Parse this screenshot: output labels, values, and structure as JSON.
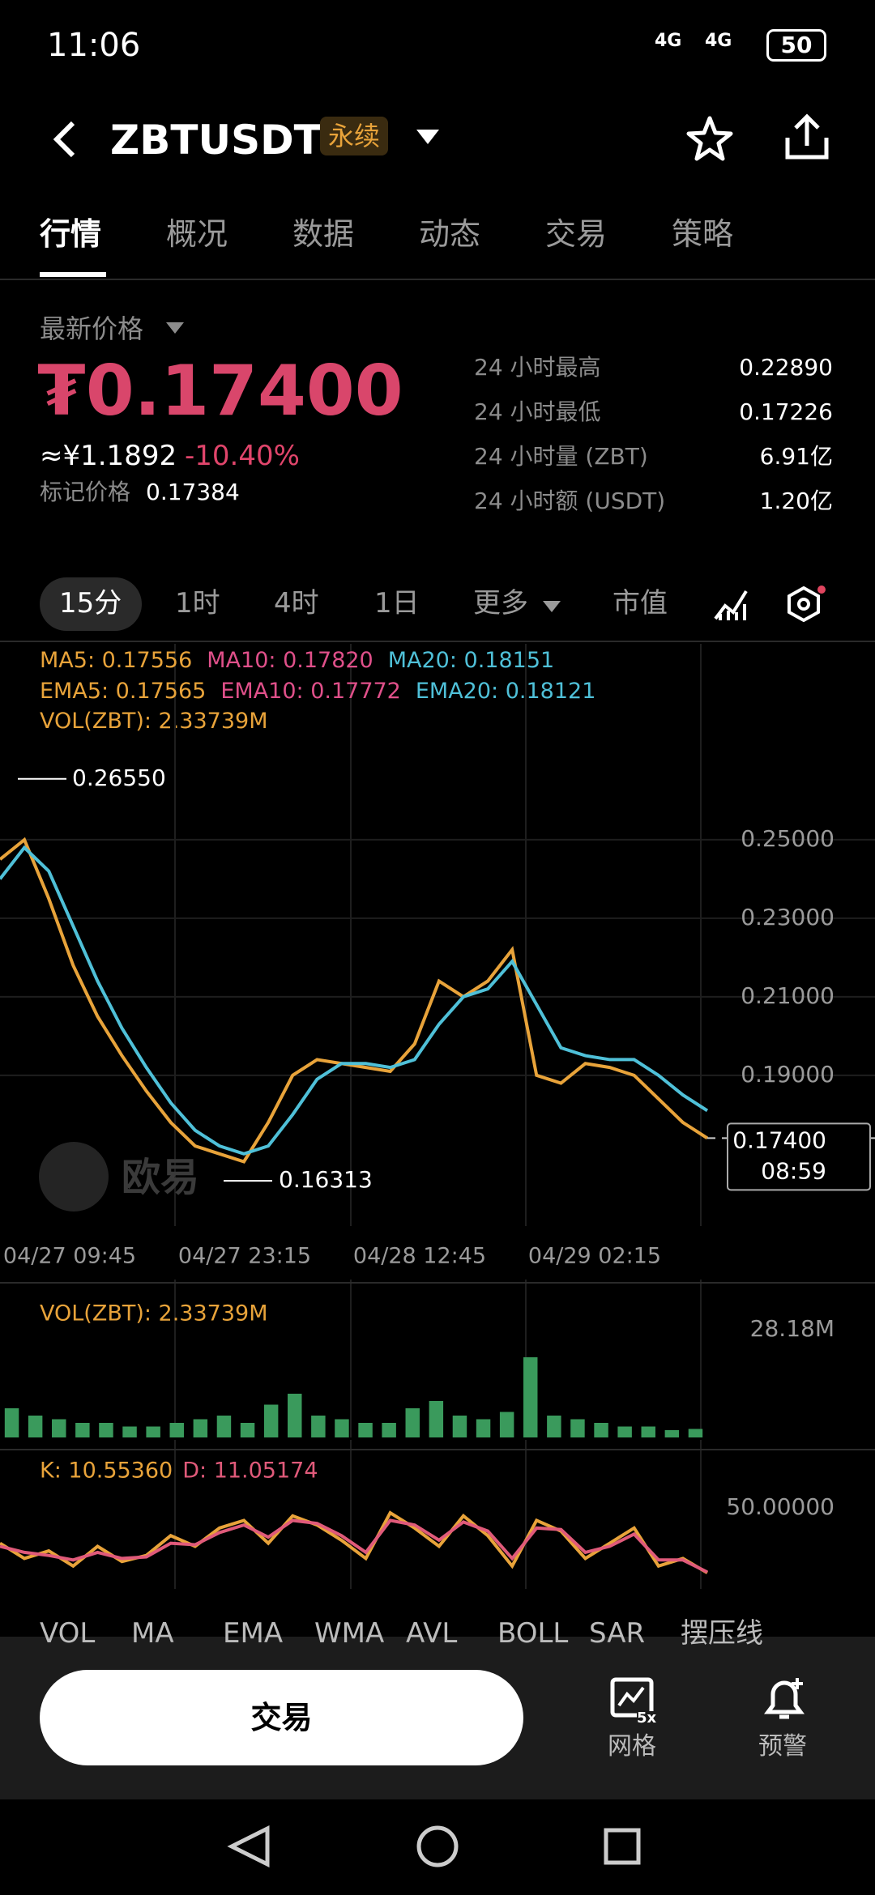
{
  "status_bar": {
    "time": "11:06",
    "network": [
      "4G",
      "4G"
    ],
    "battery": "50"
  },
  "header": {
    "symbol": "ZBTUSDT",
    "badge": "永续"
  },
  "tabs": [
    "行情",
    "概况",
    "数据",
    "动态",
    "交易",
    "策略"
  ],
  "price": {
    "label": "最新价格",
    "last": "₮0.17400",
    "cny": "≈¥1.1892",
    "change": "-10.40%",
    "mark_label": "标记价格",
    "mark": "0.17384"
  },
  "stats": [
    [
      "24 小时最高",
      "0.22890"
    ],
    [
      "24 小时最低",
      "0.17226"
    ],
    [
      "24 小时量 (ZBT)",
      "6.91亿"
    ],
    [
      "24 小时额 (USDT)",
      "1.20亿"
    ]
  ],
  "intervals": [
    "15分",
    "1时",
    "4时",
    "1日",
    "更多",
    "市值"
  ],
  "indicators": {
    "ma": [
      [
        "MA5: 0.17556",
        "#e8a33a"
      ],
      [
        "MA10: 0.17820",
        "#e0508a"
      ],
      [
        "MA20: 0.18151",
        "#4fc0d8"
      ]
    ],
    "ema": [
      [
        "EMA5: 0.17565",
        "#e8a33a"
      ],
      [
        "EMA10: 0.17772",
        "#e0508a"
      ],
      [
        "EMA20: 0.18121",
        "#4fc0d8"
      ]
    ],
    "vol": "VOL(ZBT): 2.33739M"
  },
  "watermark": "欧易",
  "chart_data": [
    {
      "type": "line",
      "ylim": [
        0.1516,
        0.2669
      ],
      "yticks": [
        {
          "value": 0.25,
          "label": "0.25000"
        },
        {
          "value": 0.23,
          "label": "0.23000"
        },
        {
          "value": 0.21,
          "label": "0.21000"
        },
        {
          "value": 0.19,
          "label": "0.19000"
        }
      ],
      "x_labels": [
        "04/27 09:45",
        "04/27 23:15",
        "04/28 12:45",
        "04/29 02:15"
      ],
      "high": {
        "value": 0.2655,
        "label": "0.26550"
      },
      "low": {
        "value": 0.16313,
        "label": "0.16313"
      },
      "last": {
        "value": 0.174,
        "label": "0.17400",
        "time": "08:59"
      },
      "series": [
        {
          "color": "#e8a33a",
          "values": [
            0.245,
            0.25,
            0.235,
            0.218,
            0.205,
            0.195,
            0.186,
            0.178,
            0.172,
            0.17,
            0.168,
            0.178,
            0.19,
            0.194,
            0.193,
            0.192,
            0.191,
            0.198,
            0.214,
            0.21,
            0.214,
            0.222,
            0.19,
            0.188,
            0.193,
            0.192,
            0.19,
            0.184,
            0.178,
            0.174
          ]
        },
        {
          "color": "#4fc0d8",
          "values": [
            0.24,
            0.248,
            0.242,
            0.228,
            0.214,
            0.202,
            0.192,
            0.183,
            0.176,
            0.172,
            0.17,
            0.172,
            0.18,
            0.189,
            0.193,
            0.193,
            0.192,
            0.194,
            0.203,
            0.21,
            0.212,
            0.219,
            0.208,
            0.197,
            0.195,
            0.194,
            0.194,
            0.19,
            0.185,
            0.181
          ]
        }
      ]
    },
    {
      "type": "bar",
      "title": "VOL(ZBT): 2.33739M",
      "ylim": [
        0,
        30
      ],
      "yticks": [
        {
          "value": 28.18,
          "label": "28.18M"
        }
      ],
      "series": [
        {
          "color": "#3a9a5c",
          "values": [
            8,
            6,
            5,
            4,
            4,
            3,
            3,
            4,
            5,
            6,
            4,
            9,
            12,
            6,
            5,
            4,
            4,
            8,
            10,
            6,
            5,
            7,
            22,
            6,
            5,
            4,
            3,
            3,
            2,
            2.33739
          ]
        }
      ]
    },
    {
      "type": "line",
      "ylim": [
        0,
        66
      ],
      "yticks": [
        {
          "value": 50,
          "label": "50.00000"
        }
      ],
      "series": [
        {
          "name": "K: 10.55360",
          "color": "#e8a33a",
          "values": [
            30,
            20,
            25,
            15,
            28,
            18,
            22,
            35,
            28,
            40,
            45,
            30,
            48,
            42,
            32,
            20,
            50,
            40,
            28,
            48,
            35,
            15,
            45,
            38,
            20,
            30,
            40,
            15,
            20,
            10.5536
          ]
        },
        {
          "name": "D: 11.05174",
          "color": "#e05a7a",
          "values": [
            28,
            24,
            22,
            19,
            24,
            20,
            21,
            30,
            29,
            37,
            42,
            34,
            45,
            43,
            35,
            24,
            45,
            42,
            32,
            44,
            38,
            20,
            40,
            39,
            24,
            28,
            36,
            19,
            19,
            11.05174
          ]
        }
      ]
    }
  ],
  "indicator_tabs": [
    "VOL",
    "MA",
    "EMA",
    "WMA",
    "AVL",
    "BOLL",
    "SAR",
    "摆压线"
  ],
  "bottom": {
    "trade": "交易",
    "grid": "网格",
    "grid_badge": "5x",
    "alert": "预警"
  }
}
